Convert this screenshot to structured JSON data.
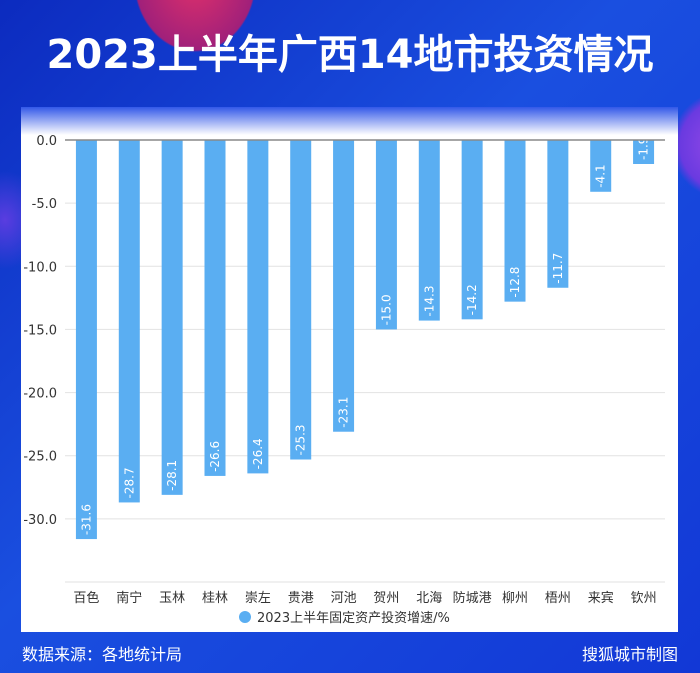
{
  "title": "2023上半年广西14地市投资情况",
  "footer": {
    "source": "数据来源：各地统计局",
    "credit": "搜狐城市制图"
  },
  "colors": {
    "bar": "#5aaef2",
    "background": "#0e32c8"
  },
  "chart_data": {
    "type": "bar",
    "categories": [
      "百色",
      "南宁",
      "玉林",
      "桂林",
      "崇左",
      "贵港",
      "河池",
      "贺州",
      "北海",
      "防城港",
      "柳州",
      "梧州",
      "来宾",
      "钦州"
    ],
    "series": [
      {
        "name": "2023上半年固定资产投资增速/%",
        "values": [
          -31.6,
          -28.7,
          -28.1,
          -26.6,
          -26.4,
          -25.3,
          -23.1,
          -15.0,
          -14.3,
          -14.2,
          -12.8,
          -11.7,
          -4.1,
          -1.9
        ]
      }
    ],
    "yticks": [
      "0.0",
      "-5.0",
      "-10.0",
      "-15.0",
      "-20.0",
      "-25.0",
      "-30.0"
    ],
    "ylim": [
      -35,
      0
    ],
    "grid": true,
    "legend": "bottom"
  }
}
